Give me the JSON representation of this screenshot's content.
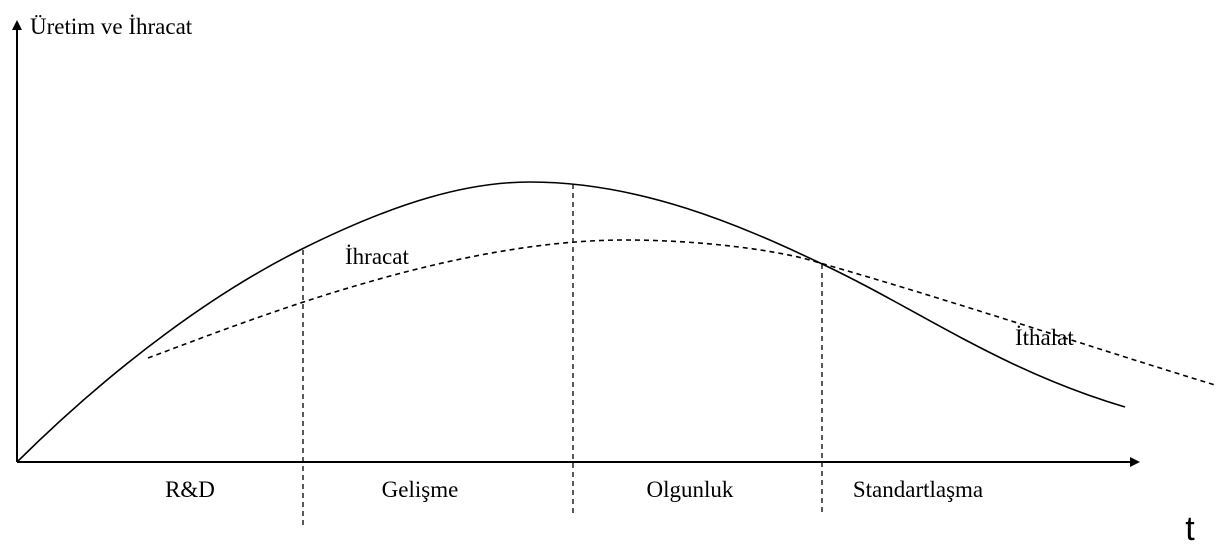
{
  "axis": {
    "y_label": "Üretim ve İhracat",
    "x_label": "t"
  },
  "curves": {
    "export": "İhracat",
    "import": "İthalat"
  },
  "phases": [
    "R&D",
    "Gelişme",
    "Olgunluk",
    "Standartlaşma"
  ]
}
